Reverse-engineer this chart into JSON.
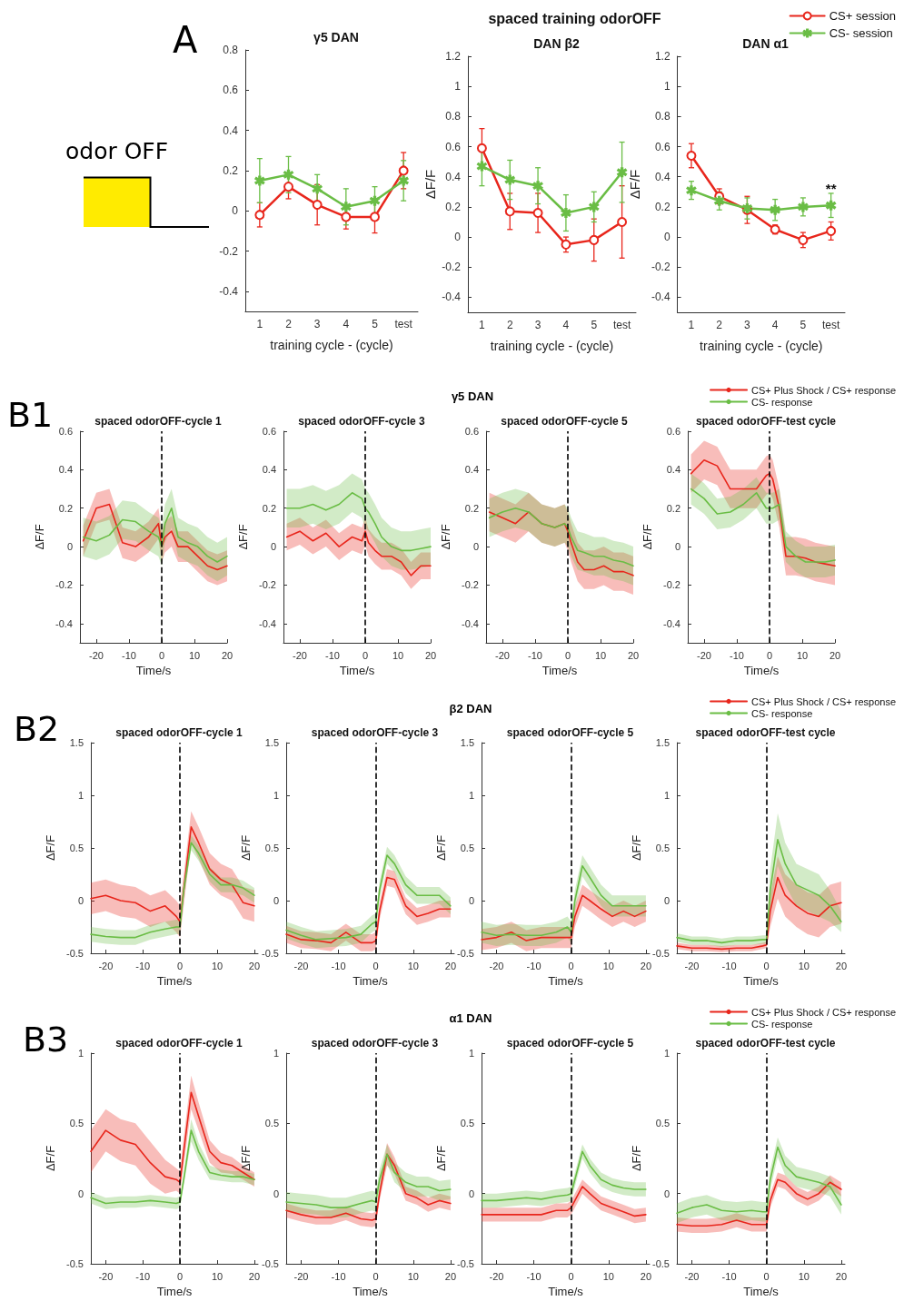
{
  "chart_data": [
    {
      "type": "line",
      "title": "γ5 DAN",
      "xlabel": "training cycle - (cycle)",
      "categories": [
        "1",
        "2",
        "3",
        "4",
        "5",
        "test"
      ],
      "ylim": [
        -0.5,
        0.8
      ],
      "yticks": [
        -0.4,
        -0.2,
        0,
        0.2,
        0.4,
        0.6,
        0.8
      ],
      "annotations": [
        "A",
        "odor OFF"
      ],
      "series": [
        {
          "color": "#e8261c",
          "marker": "circle",
          "values": [
            -0.02,
            0.12,
            0.03,
            -0.03,
            -0.03,
            0.2
          ],
          "errors": [
            0.06,
            0.06,
            0.1,
            0.06,
            0.08,
            0.09
          ]
        },
        {
          "color": "#6abd45",
          "marker": "star",
          "values": [
            0.15,
            0.18,
            0.11,
            0.02,
            0.05,
            0.15
          ],
          "errors": [
            0.11,
            0.09,
            0.07,
            0.09,
            0.07,
            0.1
          ]
        }
      ]
    },
    {
      "type": "line",
      "title": "DAN β2",
      "subtitle": "spaced training odorOFF",
      "xlabel": "training cycle - (cycle)",
      "ylabel": "ΔF/F",
      "categories": [
        "1",
        "2",
        "3",
        "4",
        "5",
        "test"
      ],
      "ylim": [
        -0.5,
        1.2
      ],
      "yticks": [
        -0.4,
        -0.2,
        0,
        0.2,
        0.4,
        0.6,
        0.8,
        1,
        1.2
      ],
      "series": [
        {
          "color": "#e8261c",
          "marker": "circle",
          "values": [
            0.59,
            0.17,
            0.16,
            -0.05,
            -0.02,
            0.1
          ],
          "errors": [
            0.13,
            0.12,
            0.13,
            0.05,
            0.14,
            0.24
          ]
        },
        {
          "color": "#6abd45",
          "marker": "star",
          "values": [
            0.47,
            0.38,
            0.34,
            0.16,
            0.2,
            0.43
          ],
          "errors": [
            0.13,
            0.13,
            0.12,
            0.12,
            0.1,
            0.2
          ]
        }
      ]
    },
    {
      "type": "line",
      "title": "DAN α1",
      "xlabel": "training cycle - (cycle)",
      "ylabel": "ΔF/F",
      "categories": [
        "1",
        "2",
        "3",
        "4",
        "5",
        "test"
      ],
      "ylim": [
        -0.5,
        1.2
      ],
      "yticks": [
        -0.4,
        -0.2,
        0,
        0.2,
        0.4,
        0.6,
        0.8,
        1,
        1.2
      ],
      "legend": "top right",
      "annotations": [
        {
          "text": "**",
          "x": "test",
          "y": 0.32
        }
      ],
      "series": [
        {
          "name": "CS+ session",
          "color": "#e8261c",
          "marker": "circle",
          "values": [
            0.54,
            0.27,
            0.18,
            0.05,
            -0.02,
            0.04
          ],
          "errors": [
            0.08,
            0.05,
            0.09,
            0.03,
            0.05,
            0.06
          ]
        },
        {
          "name": "CS- session",
          "color": "#6abd45",
          "marker": "star",
          "values": [
            0.31,
            0.24,
            0.19,
            0.18,
            0.2,
            0.21
          ],
          "errors": [
            0.06,
            0.06,
            0.07,
            0.07,
            0.06,
            0.08
          ]
        }
      ]
    },
    {
      "type": "line",
      "title": "spaced odorOFF-cycle 1",
      "xlabel": "Time/s",
      "ylabel": "ΔF/F",
      "x": [
        -24,
        -20,
        -16,
        -12,
        -8,
        -4,
        -1,
        0,
        1,
        3,
        5,
        8,
        11,
        14,
        17,
        20
      ],
      "xlim": [
        -25,
        20
      ],
      "xticks": [
        -20,
        -10,
        0,
        10,
        20
      ],
      "ylim": [
        -0.5,
        0.6
      ],
      "yticks": [
        -0.4,
        -0.2,
        0,
        0.2,
        0.4,
        0.6
      ],
      "ref_lines": [
        {
          "axis": "x",
          "value": 0,
          "color": "#000000",
          "line_style": "dashed"
        }
      ],
      "annotations": [
        "B1",
        "γ5 DAN"
      ],
      "series": [
        {
          "color": "#e8261c",
          "values": [
            0.03,
            0.2,
            0.22,
            0.02,
            0.0,
            0.05,
            0.12,
            0.0,
            0.05,
            0.08,
            0.0,
            0.0,
            -0.05,
            -0.1,
            -0.12,
            -0.1
          ],
          "lower": [
            -0.05,
            0.12,
            0.14,
            -0.06,
            -0.08,
            -0.03,
            0.04,
            -0.08,
            -0.03,
            0.0,
            -0.08,
            -0.08,
            -0.13,
            -0.18,
            -0.2,
            -0.18
          ],
          "upper": [
            0.11,
            0.28,
            0.3,
            0.1,
            0.08,
            0.13,
            0.2,
            0.08,
            0.13,
            0.16,
            0.08,
            0.08,
            0.03,
            -0.02,
            -0.04,
            -0.02
          ]
        },
        {
          "color": "#6abd45",
          "values": [
            0.05,
            0.03,
            0.06,
            0.14,
            0.13,
            0.08,
            0.05,
            0.0,
            0.12,
            0.2,
            0.05,
            0.02,
            0.0,
            -0.05,
            -0.08,
            -0.05
          ],
          "lower": [
            -0.05,
            -0.07,
            -0.04,
            0.04,
            0.03,
            -0.02,
            -0.05,
            -0.1,
            0.02,
            0.1,
            -0.05,
            -0.08,
            -0.1,
            -0.15,
            -0.18,
            -0.15
          ],
          "upper": [
            0.15,
            0.13,
            0.16,
            0.24,
            0.23,
            0.18,
            0.15,
            0.1,
            0.22,
            0.3,
            0.15,
            0.12,
            0.1,
            0.05,
            0.02,
            0.05
          ]
        }
      ]
    },
    {
      "type": "line",
      "title": "spaced odorOFF-cycle 3",
      "xlabel": "Time/s",
      "ylabel": "ΔF/F",
      "x": [
        -24,
        -20,
        -16,
        -12,
        -8,
        -4,
        -1,
        0,
        1,
        3,
        5,
        8,
        11,
        14,
        17,
        20
      ],
      "xlim": [
        -25,
        20
      ],
      "xticks": [
        -20,
        -10,
        0,
        10,
        20
      ],
      "ylim": [
        -0.5,
        0.6
      ],
      "yticks": [
        -0.4,
        -0.2,
        0,
        0.2,
        0.4,
        0.6
      ],
      "ref_lines": [
        {
          "axis": "x",
          "value": 0,
          "color": "#000000",
          "line_style": "dashed"
        }
      ],
      "series": [
        {
          "color": "#e8261c",
          "values": [
            0.05,
            0.08,
            0.03,
            0.07,
            0.0,
            0.05,
            0.03,
            0.08,
            0.02,
            -0.02,
            -0.05,
            -0.05,
            -0.08,
            -0.15,
            -0.1,
            -0.1
          ],
          "lower": [
            -0.02,
            0.01,
            -0.04,
            0.0,
            -0.07,
            -0.02,
            -0.04,
            0.01,
            -0.05,
            -0.09,
            -0.12,
            -0.12,
            -0.15,
            -0.22,
            -0.17,
            -0.17
          ],
          "upper": [
            0.12,
            0.15,
            0.1,
            0.14,
            0.07,
            0.12,
            0.1,
            0.15,
            0.09,
            0.05,
            0.02,
            0.02,
            -0.01,
            -0.08,
            -0.03,
            -0.03
          ]
        },
        {
          "color": "#6abd45",
          "values": [
            0.2,
            0.2,
            0.22,
            0.19,
            0.22,
            0.28,
            0.25,
            0.2,
            0.18,
            0.12,
            0.05,
            0.0,
            -0.02,
            -0.02,
            -0.01,
            0.0
          ],
          "lower": [
            0.1,
            0.1,
            0.12,
            0.09,
            0.12,
            0.18,
            0.15,
            0.1,
            0.08,
            0.02,
            -0.05,
            -0.1,
            -0.12,
            -0.12,
            -0.11,
            -0.1
          ],
          "upper": [
            0.3,
            0.3,
            0.32,
            0.29,
            0.32,
            0.38,
            0.35,
            0.3,
            0.28,
            0.22,
            0.15,
            0.1,
            0.08,
            0.08,
            0.09,
            0.1
          ]
        }
      ]
    },
    {
      "type": "line",
      "title": "spaced odorOFF-cycle 5",
      "xlabel": "Time/s",
      "ylabel": "ΔF/F",
      "x": [
        -24,
        -20,
        -16,
        -12,
        -8,
        -4,
        -1,
        0,
        1,
        3,
        5,
        8,
        11,
        14,
        17,
        20
      ],
      "xlim": [
        -25,
        20
      ],
      "xticks": [
        -20,
        -10,
        0,
        10,
        20
      ],
      "ylim": [
        -0.5,
        0.6
      ],
      "yticks": [
        -0.4,
        -0.2,
        0,
        0.2,
        0.4,
        0.6
      ],
      "ref_lines": [
        {
          "axis": "x",
          "value": 0,
          "color": "#000000",
          "line_style": "dashed"
        }
      ],
      "series": [
        {
          "color": "#e8261c",
          "values": [
            0.18,
            0.15,
            0.12,
            0.18,
            0.12,
            0.1,
            0.12,
            0.08,
            0.02,
            -0.08,
            -0.12,
            -0.12,
            -0.1,
            -0.13,
            -0.13,
            -0.15
          ],
          "lower": [
            0.08,
            0.05,
            0.02,
            0.08,
            0.02,
            0.0,
            0.02,
            -0.02,
            -0.08,
            -0.18,
            -0.22,
            -0.22,
            -0.2,
            -0.23,
            -0.23,
            -0.25
          ],
          "upper": [
            0.28,
            0.25,
            0.22,
            0.28,
            0.22,
            0.2,
            0.22,
            0.18,
            0.12,
            0.02,
            -0.02,
            -0.02,
            0.0,
            -0.03,
            -0.03,
            -0.05
          ]
        },
        {
          "color": "#6abd45",
          "values": [
            0.15,
            0.18,
            0.2,
            0.18,
            0.12,
            0.1,
            0.12,
            0.1,
            0.05,
            -0.02,
            -0.03,
            -0.05,
            -0.05,
            -0.07,
            -0.08,
            -0.1
          ],
          "lower": [
            0.05,
            0.08,
            0.1,
            0.08,
            0.02,
            0.0,
            0.02,
            0.0,
            -0.05,
            -0.12,
            -0.13,
            -0.15,
            -0.15,
            -0.17,
            -0.18,
            -0.2
          ],
          "upper": [
            0.25,
            0.28,
            0.3,
            0.28,
            0.22,
            0.2,
            0.22,
            0.2,
            0.15,
            0.08,
            0.07,
            0.05,
            0.05,
            0.03,
            0.02,
            0.0
          ]
        }
      ]
    },
    {
      "type": "line",
      "title": "spaced odorOFF-test cycle",
      "xlabel": "Time/s",
      "ylabel": "ΔF/F",
      "x": [
        -24,
        -20,
        -16,
        -12,
        -8,
        -4,
        -1,
        0,
        1,
        3,
        5,
        8,
        11,
        14,
        17,
        20
      ],
      "xlim": [
        -25,
        20
      ],
      "xticks": [
        -20,
        -10,
        0,
        10,
        20
      ],
      "ylim": [
        -0.5,
        0.6
      ],
      "yticks": [
        -0.4,
        -0.2,
        0,
        0.2,
        0.4,
        0.6
      ],
      "ref_lines": [
        {
          "axis": "x",
          "value": 0,
          "color": "#000000",
          "line_style": "dashed"
        }
      ],
      "legend": "top right",
      "series": [
        {
          "name": "CS+ Plus Shock / CS+ response",
          "color": "#e8261c",
          "values": [
            0.38,
            0.45,
            0.42,
            0.3,
            0.3,
            0.3,
            0.37,
            0.38,
            0.35,
            0.2,
            -0.05,
            -0.05,
            -0.06,
            -0.08,
            -0.09,
            -0.1
          ],
          "lower": [
            0.28,
            0.35,
            0.32,
            0.2,
            0.2,
            0.2,
            0.27,
            0.28,
            0.25,
            0.1,
            -0.15,
            -0.15,
            -0.16,
            -0.18,
            -0.19,
            -0.2
          ],
          "upper": [
            0.48,
            0.55,
            0.52,
            0.4,
            0.4,
            0.4,
            0.47,
            0.48,
            0.45,
            0.3,
            0.05,
            0.05,
            0.04,
            0.02,
            0.01,
            0.0
          ]
        },
        {
          "name": "CS- response",
          "color": "#6abd45",
          "values": [
            0.3,
            0.25,
            0.17,
            0.18,
            0.22,
            0.28,
            0.2,
            0.2,
            0.2,
            0.22,
            0.0,
            -0.05,
            -0.08,
            -0.08,
            -0.08,
            -0.07
          ],
          "lower": [
            0.22,
            0.17,
            0.09,
            0.1,
            0.14,
            0.2,
            0.12,
            0.12,
            0.12,
            0.14,
            -0.08,
            -0.13,
            -0.16,
            -0.16,
            -0.16,
            -0.15
          ],
          "upper": [
            0.38,
            0.33,
            0.25,
            0.26,
            0.3,
            0.36,
            0.28,
            0.28,
            0.28,
            0.3,
            0.08,
            0.03,
            0.0,
            0.0,
            0.0,
            0.01
          ]
        }
      ]
    },
    {
      "type": "line",
      "title": "spaced odorOFF-cycle 1",
      "xlabel": "Time/s",
      "ylabel": "ΔF/F",
      "x": [
        -24,
        -20,
        -16,
        -12,
        -8,
        -4,
        -1,
        0,
        1,
        3,
        5,
        8,
        11,
        14,
        17,
        20
      ],
      "xlim": [
        -24,
        21
      ],
      "xticks": [
        -20,
        -10,
        0,
        10,
        20
      ],
      "ylim": [
        -0.5,
        1.5
      ],
      "yticks": [
        -0.5,
        0,
        0.5,
        1,
        1.5
      ],
      "ref_lines": [
        {
          "axis": "x",
          "value": 0,
          "color": "#000000",
          "line_style": "dashed"
        }
      ],
      "annotations": [
        "B2",
        "β2 DAN"
      ],
      "series": [
        {
          "color": "#e8261c",
          "values": [
            0.02,
            0.05,
            0.0,
            -0.02,
            -0.1,
            -0.05,
            -0.15,
            -0.2,
            0.1,
            0.7,
            0.55,
            0.3,
            0.2,
            0.15,
            -0.02,
            -0.05
          ],
          "lower": [
            -0.13,
            -0.1,
            -0.15,
            -0.17,
            -0.25,
            -0.2,
            -0.3,
            -0.35,
            -0.05,
            0.55,
            0.4,
            0.15,
            0.05,
            0.0,
            -0.17,
            -0.2
          ],
          "upper": [
            0.17,
            0.2,
            0.15,
            0.13,
            0.05,
            0.1,
            0.0,
            -0.05,
            0.25,
            0.85,
            0.7,
            0.45,
            0.35,
            0.3,
            0.13,
            0.1
          ]
        },
        {
          "color": "#6abd45",
          "values": [
            -0.32,
            -0.34,
            -0.35,
            -0.35,
            -0.3,
            -0.27,
            -0.25,
            -0.25,
            0.1,
            0.55,
            0.45,
            0.25,
            0.15,
            0.15,
            0.12,
            0.05
          ],
          "lower": [
            -0.39,
            -0.41,
            -0.42,
            -0.42,
            -0.37,
            -0.34,
            -0.32,
            -0.32,
            0.03,
            0.48,
            0.38,
            0.18,
            0.08,
            0.08,
            0.05,
            -0.02
          ],
          "upper": [
            -0.25,
            -0.27,
            -0.28,
            -0.28,
            -0.23,
            -0.2,
            -0.18,
            -0.18,
            0.17,
            0.62,
            0.52,
            0.32,
            0.22,
            0.22,
            0.19,
            0.12
          ]
        }
      ]
    },
    {
      "type": "line",
      "title": "spaced odorOFF-cycle 3",
      "xlabel": "Time/s",
      "ylabel": "ΔF/F",
      "x": [
        -24,
        -20,
        -16,
        -12,
        -8,
        -4,
        -1,
        0,
        1,
        3,
        5,
        8,
        11,
        14,
        17,
        20
      ],
      "xlim": [
        -24,
        21
      ],
      "xticks": [
        -20,
        -10,
        0,
        10,
        20
      ],
      "ylim": [
        -0.5,
        1.5
      ],
      "yticks": [
        -0.5,
        0,
        0.5,
        1,
        1.5
      ],
      "ref_lines": [
        {
          "axis": "x",
          "value": 0,
          "color": "#000000",
          "line_style": "dashed"
        }
      ],
      "series": [
        {
          "color": "#e8261c",
          "values": [
            -0.32,
            -0.37,
            -0.38,
            -0.4,
            -0.3,
            -0.4,
            -0.4,
            -0.38,
            -0.1,
            0.22,
            0.2,
            -0.05,
            -0.15,
            -0.12,
            -0.08,
            -0.08
          ],
          "lower": [
            -0.4,
            -0.45,
            -0.46,
            -0.48,
            -0.38,
            -0.48,
            -0.48,
            -0.46,
            -0.18,
            0.14,
            0.12,
            -0.13,
            -0.23,
            -0.2,
            -0.16,
            -0.16
          ],
          "upper": [
            -0.24,
            -0.29,
            -0.3,
            -0.32,
            -0.22,
            -0.32,
            -0.32,
            -0.3,
            -0.02,
            0.3,
            0.28,
            0.03,
            -0.07,
            -0.04,
            0.0,
            0.0
          ]
        },
        {
          "color": "#6abd45",
          "values": [
            -0.28,
            -0.33,
            -0.37,
            -0.36,
            -0.35,
            -0.32,
            -0.22,
            -0.2,
            0.1,
            0.43,
            0.35,
            0.15,
            0.05,
            0.05,
            0.05,
            -0.05
          ],
          "lower": [
            -0.36,
            -0.41,
            -0.45,
            -0.44,
            -0.43,
            -0.4,
            -0.3,
            -0.28,
            0.02,
            0.35,
            0.27,
            0.07,
            -0.03,
            -0.03,
            -0.03,
            -0.13
          ],
          "upper": [
            -0.2,
            -0.25,
            -0.29,
            -0.28,
            -0.27,
            -0.24,
            -0.14,
            -0.12,
            0.18,
            0.51,
            0.43,
            0.23,
            0.13,
            0.13,
            0.13,
            0.03
          ]
        }
      ]
    },
    {
      "type": "line",
      "title": "spaced odorOFF-cycle 5",
      "xlabel": "Time/s",
      "ylabel": "ΔF/F",
      "x": [
        -24,
        -20,
        -16,
        -12,
        -8,
        -4,
        -1,
        0,
        1,
        3,
        5,
        8,
        11,
        14,
        17,
        20
      ],
      "xlim": [
        -24,
        21
      ],
      "xticks": [
        -20,
        -10,
        0,
        10,
        20
      ],
      "ylim": [
        -0.5,
        1.5
      ],
      "yticks": [
        -0.5,
        0,
        0.5,
        1,
        1.5
      ],
      "ref_lines": [
        {
          "axis": "x",
          "value": 0,
          "color": "#000000",
          "line_style": "dashed"
        }
      ],
      "series": [
        {
          "color": "#e8261c",
          "values": [
            -0.37,
            -0.35,
            -0.3,
            -0.38,
            -0.35,
            -0.35,
            -0.35,
            -0.35,
            -0.15,
            0.05,
            0.0,
            -0.08,
            -0.15,
            -0.1,
            -0.15,
            -0.1
          ],
          "lower": [
            -0.47,
            -0.45,
            -0.4,
            -0.48,
            -0.45,
            -0.45,
            -0.45,
            -0.45,
            -0.25,
            -0.05,
            -0.1,
            -0.18,
            -0.25,
            -0.2,
            -0.25,
            -0.2
          ],
          "upper": [
            -0.27,
            -0.25,
            -0.2,
            -0.28,
            -0.25,
            -0.25,
            -0.25,
            -0.25,
            -0.05,
            0.15,
            0.1,
            0.02,
            -0.05,
            0.0,
            -0.05,
            0.0
          ]
        },
        {
          "color": "#6abd45",
          "values": [
            -0.3,
            -0.33,
            -0.32,
            -0.33,
            -0.33,
            -0.3,
            -0.25,
            -0.3,
            0.0,
            0.33,
            0.22,
            0.05,
            -0.05,
            -0.05,
            -0.05,
            -0.05
          ],
          "lower": [
            -0.4,
            -0.43,
            -0.42,
            -0.43,
            -0.43,
            -0.4,
            -0.35,
            -0.4,
            -0.1,
            0.23,
            0.12,
            -0.05,
            -0.15,
            -0.15,
            -0.15,
            -0.15
          ],
          "upper": [
            -0.2,
            -0.23,
            -0.22,
            -0.23,
            -0.23,
            -0.2,
            -0.15,
            -0.2,
            0.1,
            0.43,
            0.32,
            0.15,
            0.05,
            0.05,
            0.05,
            0.05
          ]
        }
      ]
    },
    {
      "type": "line",
      "title": "spaced odorOFF-test cycle",
      "xlabel": "Time/s",
      "ylabel": "ΔF/F",
      "x": [
        -24,
        -20,
        -16,
        -12,
        -8,
        -4,
        -1,
        0,
        1,
        3,
        5,
        8,
        11,
        14,
        17,
        20
      ],
      "xlim": [
        -24,
        21
      ],
      "xticks": [
        -20,
        -10,
        0,
        10,
        20
      ],
      "ylim": [
        -0.5,
        1.5
      ],
      "yticks": [
        -0.5,
        0,
        0.5,
        1,
        1.5
      ],
      "ref_lines": [
        {
          "axis": "x",
          "value": 0,
          "color": "#000000",
          "line_style": "dashed"
        }
      ],
      "legend": "top right",
      "series": [
        {
          "name": "CS+ Plus Shock / CS+ response",
          "color": "#e8261c",
          "values": [
            -0.43,
            -0.45,
            -0.45,
            -0.46,
            -0.45,
            -0.45,
            -0.43,
            -0.42,
            -0.1,
            0.22,
            0.05,
            -0.05,
            -0.12,
            -0.15,
            -0.05,
            -0.02
          ],
          "lower": [
            -0.46,
            -0.48,
            -0.48,
            -0.49,
            -0.48,
            -0.48,
            -0.46,
            -0.45,
            -0.25,
            0.02,
            -0.15,
            -0.25,
            -0.32,
            -0.35,
            -0.25,
            -0.22
          ],
          "upper": [
            -0.4,
            -0.42,
            -0.42,
            -0.43,
            -0.42,
            -0.42,
            -0.4,
            -0.39,
            0.05,
            0.42,
            0.25,
            0.15,
            0.08,
            0.05,
            0.15,
            0.18
          ]
        },
        {
          "name": "CS- response",
          "color": "#6abd45",
          "values": [
            -0.35,
            -0.38,
            -0.38,
            -0.4,
            -0.38,
            -0.38,
            -0.37,
            -0.37,
            0.1,
            0.58,
            0.35,
            0.15,
            0.1,
            0.05,
            -0.05,
            -0.2
          ],
          "lower": [
            -0.39,
            -0.42,
            -0.42,
            -0.44,
            -0.42,
            -0.42,
            -0.41,
            -0.41,
            -0.1,
            0.33,
            0.15,
            -0.05,
            -0.1,
            -0.15,
            -0.2,
            -0.3
          ],
          "upper": [
            -0.31,
            -0.34,
            -0.34,
            -0.36,
            -0.34,
            -0.34,
            -0.33,
            -0.33,
            0.3,
            0.83,
            0.55,
            0.35,
            0.3,
            0.25,
            0.1,
            -0.1
          ]
        }
      ]
    },
    {
      "type": "line",
      "title": "spaced odorOFF-cycle 1",
      "xlabel": "Time/s",
      "ylabel": "ΔF/F",
      "x": [
        -24,
        -20,
        -16,
        -12,
        -8,
        -4,
        -1,
        0,
        1,
        3,
        5,
        8,
        11,
        14,
        17,
        20
      ],
      "xlim": [
        -24,
        21
      ],
      "xticks": [
        -20,
        -10,
        0,
        10,
        20
      ],
      "ylim": [
        -0.5,
        1
      ],
      "yticks": [
        -0.5,
        0,
        0.5,
        1
      ],
      "ref_lines": [
        {
          "axis": "x",
          "value": 0,
          "color": "#000000",
          "line_style": "dashed"
        }
      ],
      "annotations": [
        "B3",
        "α1 DAN"
      ],
      "series": [
        {
          "color": "#e8261c",
          "values": [
            0.3,
            0.45,
            0.38,
            0.35,
            0.22,
            0.12,
            0.1,
            0.08,
            0.3,
            0.72,
            0.55,
            0.3,
            0.22,
            0.2,
            0.15,
            0.1
          ],
          "lower": [
            0.15,
            0.3,
            0.23,
            0.2,
            0.07,
            0.0,
            0.02,
            0.0,
            0.2,
            0.6,
            0.45,
            0.22,
            0.15,
            0.14,
            0.1,
            0.05
          ],
          "upper": [
            0.45,
            0.6,
            0.53,
            0.5,
            0.37,
            0.24,
            0.18,
            0.16,
            0.4,
            0.84,
            0.65,
            0.38,
            0.29,
            0.26,
            0.2,
            0.15
          ]
        },
        {
          "color": "#6abd45",
          "values": [
            -0.03,
            -0.07,
            -0.06,
            -0.06,
            -0.05,
            -0.06,
            -0.07,
            -0.06,
            0.1,
            0.45,
            0.3,
            0.15,
            0.13,
            0.12,
            0.12,
            0.1
          ],
          "lower": [
            -0.07,
            -0.11,
            -0.1,
            -0.1,
            -0.09,
            -0.1,
            -0.11,
            -0.1,
            0.06,
            0.37,
            0.24,
            0.1,
            0.09,
            0.08,
            0.08,
            0.06
          ],
          "upper": [
            0.01,
            -0.03,
            -0.02,
            -0.02,
            -0.01,
            -0.02,
            -0.03,
            -0.02,
            0.14,
            0.53,
            0.36,
            0.2,
            0.17,
            0.16,
            0.16,
            0.14
          ]
        }
      ]
    },
    {
      "type": "line",
      "title": "spaced odorOFF-cycle 3",
      "xlabel": "Time/s",
      "ylabel": "ΔF/F",
      "x": [
        -24,
        -20,
        -16,
        -12,
        -8,
        -4,
        -1,
        0,
        1,
        3,
        5,
        8,
        11,
        14,
        17,
        20
      ],
      "xlim": [
        -24,
        21
      ],
      "xticks": [
        -20,
        -10,
        0,
        10,
        20
      ],
      "ylim": [
        -0.5,
        1
      ],
      "yticks": [
        -0.5,
        0,
        0.5,
        1
      ],
      "ref_lines": [
        {
          "axis": "x",
          "value": 0,
          "color": "#000000",
          "line_style": "dashed"
        }
      ],
      "series": [
        {
          "color": "#e8261c",
          "values": [
            -0.12,
            -0.15,
            -0.17,
            -0.17,
            -0.14,
            -0.18,
            -0.19,
            -0.18,
            0.0,
            0.28,
            0.2,
            0.0,
            -0.03,
            -0.08,
            -0.05,
            -0.07
          ],
          "lower": [
            -0.17,
            -0.2,
            -0.22,
            -0.22,
            -0.19,
            -0.23,
            -0.24,
            -0.23,
            -0.05,
            0.2,
            0.14,
            -0.05,
            -0.08,
            -0.13,
            -0.1,
            -0.12
          ],
          "upper": [
            -0.07,
            -0.1,
            -0.12,
            -0.12,
            -0.09,
            -0.13,
            -0.14,
            -0.13,
            0.05,
            0.36,
            0.26,
            0.05,
            0.02,
            -0.03,
            0.0,
            -0.02
          ]
        },
        {
          "color": "#6abd45",
          "values": [
            -0.06,
            -0.07,
            -0.08,
            -0.1,
            -0.1,
            -0.07,
            -0.05,
            -0.06,
            0.1,
            0.28,
            0.15,
            0.08,
            0.05,
            0.05,
            0.02,
            0.03
          ],
          "lower": [
            -0.13,
            -0.14,
            -0.15,
            -0.17,
            -0.17,
            -0.14,
            -0.12,
            -0.13,
            0.03,
            0.21,
            0.08,
            0.01,
            -0.02,
            -0.02,
            -0.05,
            -0.04
          ],
          "upper": [
            0.01,
            0.0,
            -0.01,
            -0.03,
            -0.03,
            0.0,
            0.02,
            0.01,
            0.17,
            0.35,
            0.22,
            0.15,
            0.12,
            0.12,
            0.09,
            0.1
          ]
        }
      ]
    },
    {
      "type": "line",
      "title": "spaced odorOFF-cycle 5",
      "xlabel": "Time/s",
      "ylabel": "ΔF/F",
      "x": [
        -24,
        -20,
        -16,
        -12,
        -8,
        -4,
        -1,
        0,
        1,
        3,
        5,
        8,
        11,
        14,
        17,
        20
      ],
      "xlim": [
        -24,
        21
      ],
      "xticks": [
        -20,
        -10,
        0,
        10,
        20
      ],
      "ylim": [
        -0.5,
        1
      ],
      "yticks": [
        -0.5,
        0,
        0.5,
        1
      ],
      "ref_lines": [
        {
          "axis": "x",
          "value": 0,
          "color": "#000000",
          "line_style": "dashed"
        }
      ],
      "series": [
        {
          "color": "#e8261c",
          "values": [
            -0.15,
            -0.15,
            -0.15,
            -0.15,
            -0.15,
            -0.12,
            -0.12,
            -0.1,
            -0.05,
            0.05,
            0.0,
            -0.07,
            -0.1,
            -0.13,
            -0.16,
            -0.15
          ],
          "lower": [
            -0.2,
            -0.2,
            -0.2,
            -0.2,
            -0.2,
            -0.17,
            -0.17,
            -0.15,
            -0.1,
            0.0,
            -0.05,
            -0.12,
            -0.15,
            -0.18,
            -0.21,
            -0.2
          ],
          "upper": [
            -0.1,
            -0.1,
            -0.1,
            -0.1,
            -0.1,
            -0.07,
            -0.07,
            -0.05,
            0.0,
            0.1,
            0.05,
            -0.02,
            -0.05,
            -0.08,
            -0.11,
            -0.1
          ]
        },
        {
          "color": "#6abd45",
          "values": [
            -0.05,
            -0.05,
            -0.04,
            -0.03,
            -0.04,
            -0.02,
            -0.01,
            0.0,
            0.1,
            0.3,
            0.2,
            0.1,
            0.06,
            0.04,
            0.03,
            0.03
          ],
          "lower": [
            -0.1,
            -0.1,
            -0.09,
            -0.08,
            -0.09,
            -0.07,
            -0.06,
            -0.05,
            0.05,
            0.25,
            0.15,
            0.05,
            0.01,
            -0.01,
            -0.02,
            -0.02
          ],
          "upper": [
            0.0,
            0.0,
            0.01,
            0.02,
            0.01,
            0.03,
            0.04,
            0.05,
            0.15,
            0.35,
            0.25,
            0.15,
            0.11,
            0.09,
            0.08,
            0.08
          ]
        }
      ]
    },
    {
      "type": "line",
      "title": "spaced odorOFF-test cycle",
      "xlabel": "Time/s",
      "ylabel": "ΔF/F",
      "x": [
        -24,
        -20,
        -16,
        -12,
        -8,
        -4,
        -1,
        0,
        1,
        3,
        5,
        8,
        11,
        14,
        17,
        20
      ],
      "xlim": [
        -24,
        21
      ],
      "xticks": [
        -20,
        -10,
        0,
        10,
        20
      ],
      "ylim": [
        -0.5,
        1
      ],
      "yticks": [
        -0.5,
        0,
        0.5,
        1
      ],
      "ref_lines": [
        {
          "axis": "x",
          "value": 0,
          "color": "#000000",
          "line_style": "dashed"
        }
      ],
      "legend": "top right",
      "series": [
        {
          "name": "CS+ Plus Shock / CS+ response",
          "color": "#e8261c",
          "values": [
            -0.22,
            -0.23,
            -0.23,
            -0.22,
            -0.19,
            -0.22,
            -0.22,
            -0.22,
            -0.05,
            0.1,
            0.08,
            0.0,
            -0.04,
            0.0,
            0.08,
            0.03
          ],
          "lower": [
            -0.27,
            -0.28,
            -0.28,
            -0.27,
            -0.24,
            -0.27,
            -0.27,
            -0.27,
            -0.1,
            0.05,
            0.03,
            -0.05,
            -0.09,
            -0.05,
            0.03,
            -0.02
          ],
          "upper": [
            -0.17,
            -0.18,
            -0.18,
            -0.17,
            -0.14,
            -0.17,
            -0.17,
            -0.17,
            0.0,
            0.15,
            0.13,
            0.05,
            0.01,
            0.05,
            0.13,
            0.08
          ]
        },
        {
          "name": "CS- response",
          "color": "#6abd45",
          "values": [
            -0.14,
            -0.1,
            -0.08,
            -0.12,
            -0.13,
            -0.12,
            -0.13,
            -0.13,
            0.1,
            0.33,
            0.2,
            0.12,
            0.1,
            0.08,
            0.05,
            -0.08
          ],
          "lower": [
            -0.21,
            -0.17,
            -0.15,
            -0.19,
            -0.2,
            -0.19,
            -0.2,
            -0.2,
            0.03,
            0.26,
            0.13,
            0.05,
            0.03,
            0.01,
            -0.02,
            -0.15
          ],
          "upper": [
            -0.07,
            -0.03,
            -0.01,
            -0.05,
            -0.06,
            -0.05,
            -0.06,
            -0.06,
            0.17,
            0.4,
            0.27,
            0.19,
            0.17,
            0.15,
            0.12,
            -0.01
          ]
        }
      ]
    }
  ]
}
